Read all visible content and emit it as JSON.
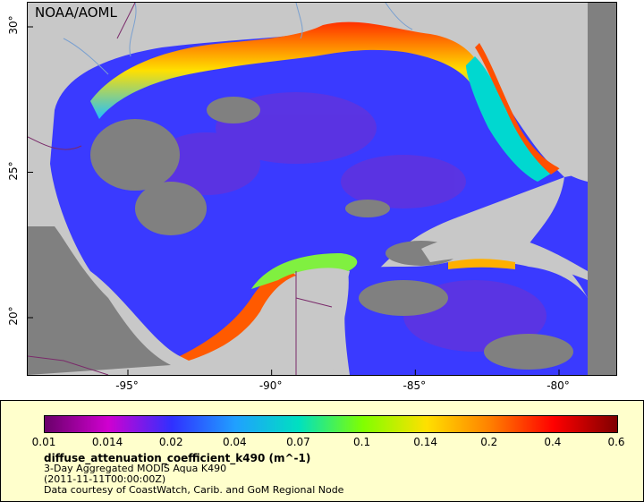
{
  "map": {
    "credit": "NOAA/AOML",
    "lat_ticks": [
      {
        "label": "30°",
        "lat": 30
      },
      {
        "label": "25°",
        "lat": 25
      },
      {
        "label": "20°",
        "lat": 20
      }
    ],
    "lon_ticks": [
      {
        "label": "-95°",
        "lon": -95
      },
      {
        "label": "-90°",
        "lon": -90
      },
      {
        "label": "-85°",
        "lon": -85
      },
      {
        "label": "-80°",
        "lon": -80
      }
    ],
    "colors": {
      "land": "#c8c8c8",
      "no_data": "#808080",
      "water": "#3a3aff",
      "rivers": "#7aa0d0",
      "borders": "#7a2a6a"
    }
  },
  "legend": {
    "colorbar_labels": [
      "0.01",
      "0.014",
      "0.02",
      "0.04",
      "0.07",
      "0.1",
      "0.14",
      "0.2",
      "0.4",
      "0.6"
    ],
    "colorbar_colors": [
      "#6a006a",
      "#d000d0",
      "#3030ff",
      "#20a0ff",
      "#00e0c0",
      "#80ff00",
      "#ffe000",
      "#ff8000",
      "#ff0000",
      "#800000"
    ],
    "variable": "diffuse_attenuation_coefficient_k490 (m^-1)",
    "product": "3-Day Aggregated MODIS Aqua K490",
    "time": "(2011-11-11T00:00:00Z)",
    "courtesy": "Data courtesy of CoastWatch, Carib. and GoM Regional Node"
  }
}
